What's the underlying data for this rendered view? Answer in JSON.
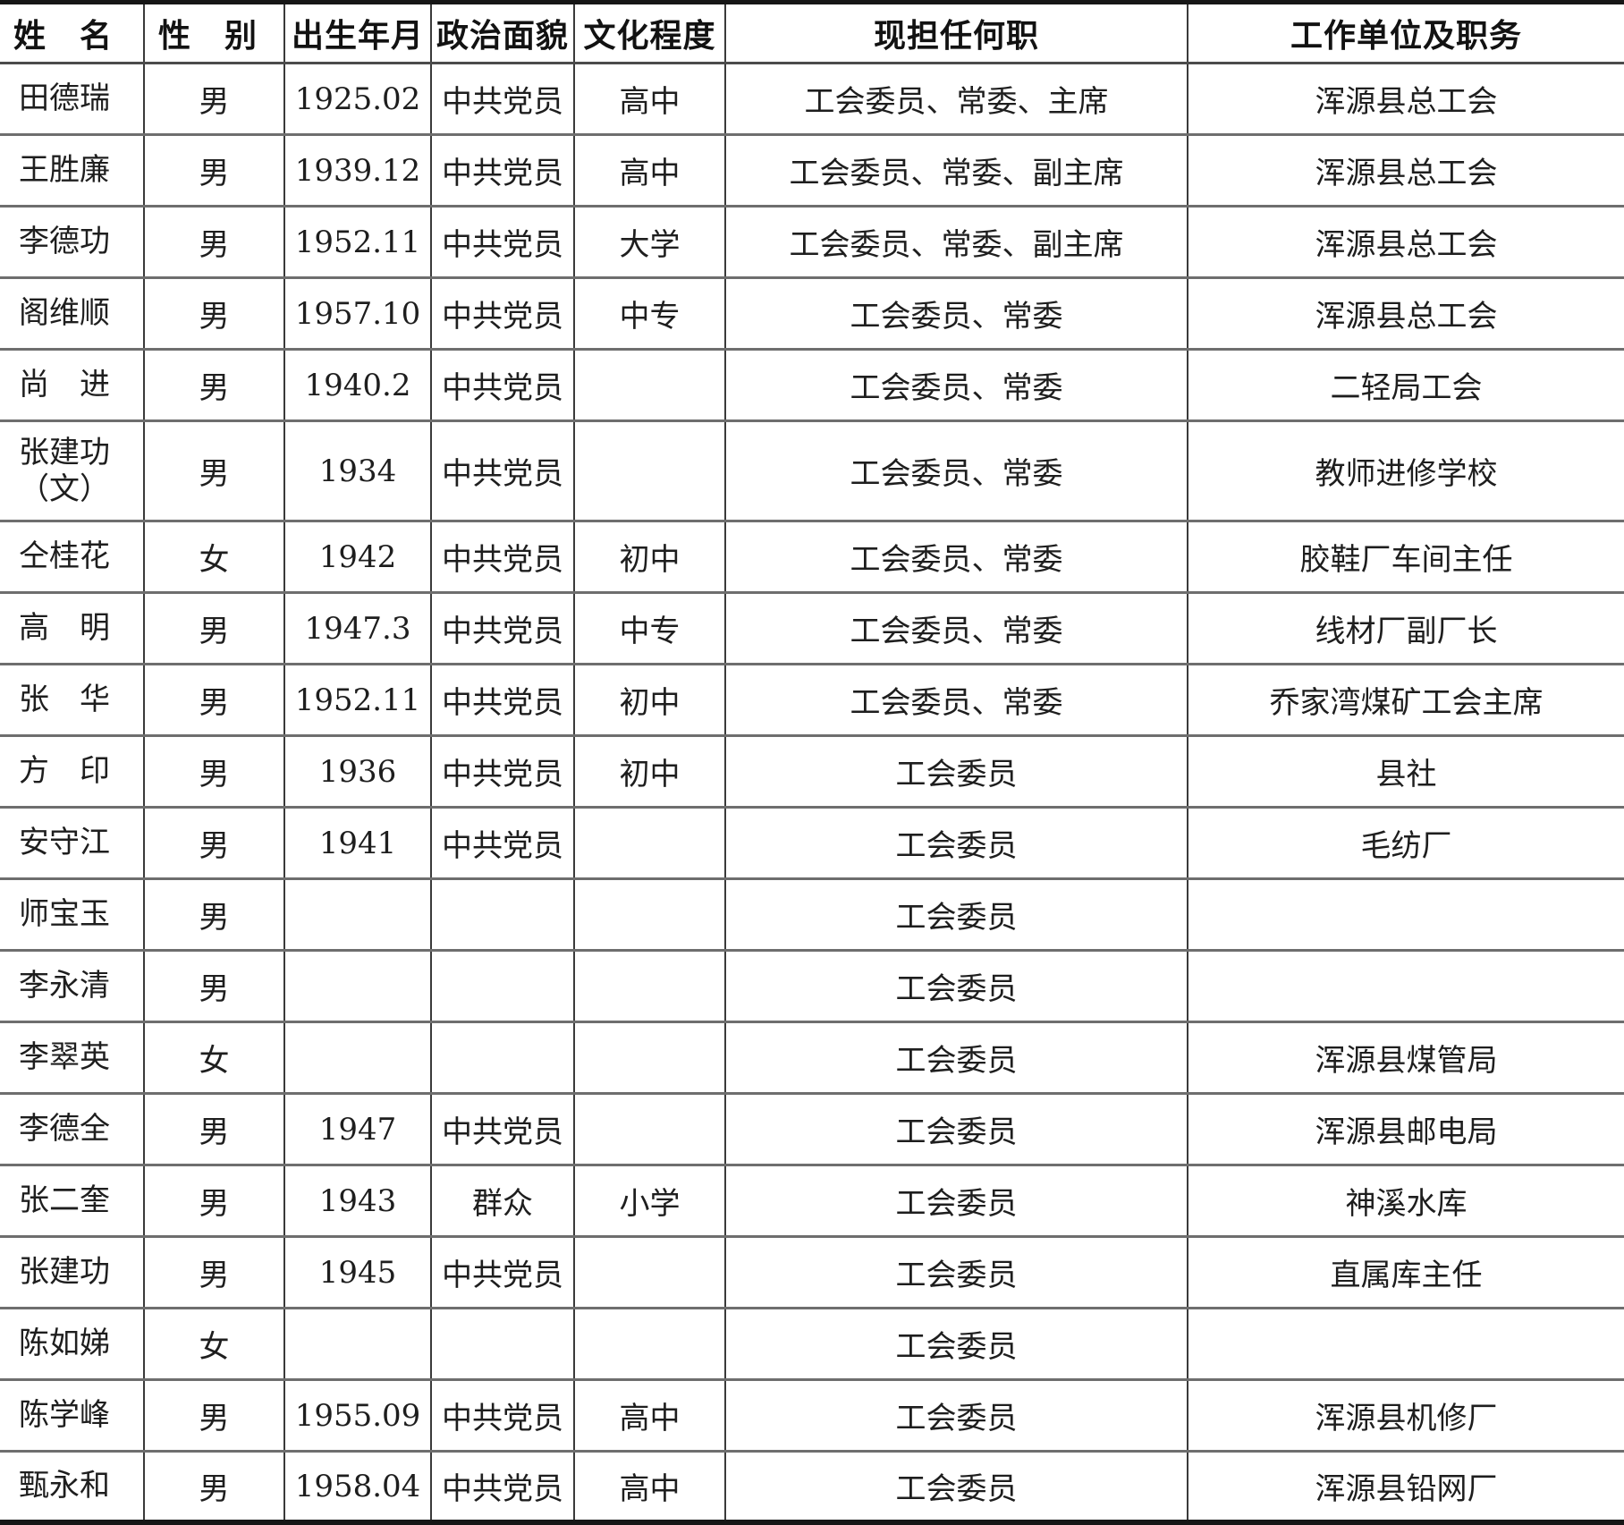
{
  "table": {
    "columns": [
      "姓　名",
      "性　别",
      "出生年月",
      "政治面貌",
      "文化程度",
      "现担任何职",
      "工作单位及职务"
    ],
    "column_keys": [
      "name",
      "gender",
      "birth-date",
      "political-status",
      "education",
      "current-position",
      "work-unit"
    ],
    "rows": [
      [
        "田德瑞",
        "男",
        "1925.02",
        "中共党员",
        "高中",
        "工会委员、常委、主席",
        "浑源县总工会"
      ],
      [
        "王胜廉",
        "男",
        "1939.12",
        "中共党员",
        "高中",
        "工会委员、常委、副主席",
        "浑源县总工会"
      ],
      [
        "李德功",
        "男",
        "1952.11",
        "中共党员",
        "大学",
        "工会委员、常委、副主席",
        "浑源县总工会"
      ],
      [
        "阁维顺",
        "男",
        "1957.10",
        "中共党员",
        "中专",
        "工会委员、常委",
        "浑源县总工会"
      ],
      [
        "尚　进",
        "男",
        "1940.2",
        "中共党员",
        "",
        "工会委员、常委",
        "二轻局工会"
      ],
      [
        "张建功\n（文）",
        "男",
        "1934",
        "中共党员",
        "",
        "工会委员、常委",
        "教师进修学校"
      ],
      [
        "仝桂花",
        "女",
        "1942",
        "中共党员",
        "初中",
        "工会委员、常委",
        "胶鞋厂车间主任"
      ],
      [
        "高　明",
        "男",
        "1947.3",
        "中共党员",
        "中专",
        "工会委员、常委",
        "线材厂副厂长"
      ],
      [
        "张　华",
        "男",
        "1952.11",
        "中共党员",
        "初中",
        "工会委员、常委",
        "乔家湾煤矿工会主席"
      ],
      [
        "方　印",
        "男",
        "1936",
        "中共党员",
        "初中",
        "工会委员",
        "县社"
      ],
      [
        "安守江",
        "男",
        "1941",
        "中共党员",
        "",
        "工会委员",
        "毛纺厂"
      ],
      [
        "师宝玉",
        "男",
        "",
        "",
        "",
        "工会委员",
        ""
      ],
      [
        "李永清",
        "男",
        "",
        "",
        "",
        "工会委员",
        ""
      ],
      [
        "李翠英",
        "女",
        "",
        "",
        "",
        "工会委员",
        "浑源县煤管局"
      ],
      [
        "李德全",
        "男",
        "1947",
        "中共党员",
        "",
        "工会委员",
        "浑源县邮电局"
      ],
      [
        "张二奎",
        "男",
        "1943",
        "群众",
        "小学",
        "工会委员",
        "神溪水库"
      ],
      [
        "张建功",
        "男",
        "1945",
        "中共党员",
        "",
        "工会委员",
        "直属库主任"
      ],
      [
        "陈如娣",
        "女",
        "",
        "",
        "",
        "工会委员",
        ""
      ],
      [
        "陈学峰",
        "男",
        "1955.09",
        "中共党员",
        "高中",
        "工会委员",
        "浑源县机修厂"
      ],
      [
        "甄永和",
        "男",
        "1958.04",
        "中共党员",
        "高中",
        "工会委员",
        "浑源县铅网厂"
      ]
    ],
    "line_colors": {
      "outer_border": "#161616",
      "vertical_line": "#3a3a3a",
      "row_separator": "#6e6e6e"
    }
  }
}
